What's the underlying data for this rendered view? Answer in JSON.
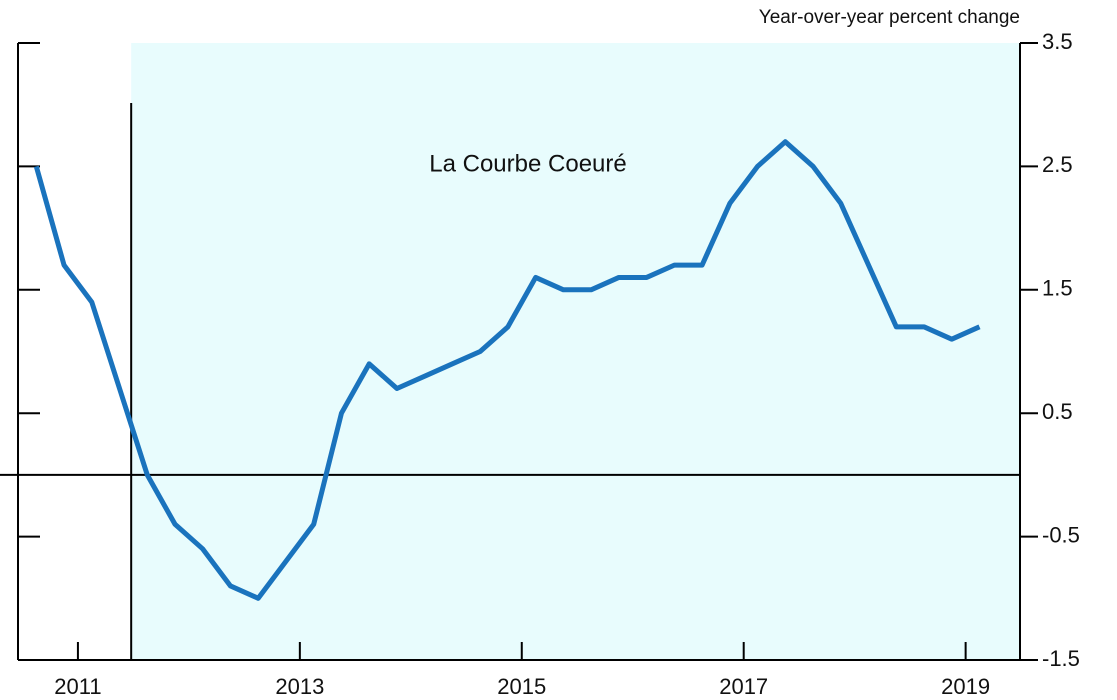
{
  "chart_data": {
    "type": "line",
    "y_axis_label": "Year-over-year percent change",
    "annotation": "La Courbe Coeuré",
    "x": [
      2010.625,
      2010.875,
      2011.125,
      2011.375,
      2011.625,
      2011.875,
      2012.125,
      2012.375,
      2012.625,
      2012.875,
      2013.125,
      2013.375,
      2013.625,
      2013.875,
      2014.125,
      2014.375,
      2014.625,
      2014.875,
      2015.125,
      2015.375,
      2015.625,
      2015.875,
      2016.125,
      2016.375,
      2016.625,
      2016.875,
      2017.125,
      2017.375,
      2017.625,
      2017.875,
      2018.125,
      2018.375,
      2018.625,
      2018.875,
      2019.125
    ],
    "series": [
      {
        "color": "#1a73bd",
        "values": [
          2.5,
          1.7,
          1.4,
          0.7,
          0.0,
          -0.4,
          -0.6,
          -0.9,
          -1.0,
          -0.7,
          -0.4,
          0.5,
          0.9,
          0.7,
          0.8,
          0.9,
          1.0,
          1.2,
          1.6,
          1.5,
          1.5,
          1.6,
          1.6,
          1.7,
          1.7,
          2.2,
          2.5,
          2.7,
          2.5,
          2.2,
          1.7,
          1.2,
          1.2,
          1.1,
          1.2
        ]
      }
    ],
    "xlim": [
      2010.46,
      2019.49
    ],
    "xticks": [
      2011,
      2013,
      2015,
      2017,
      2019
    ],
    "ylim": [
      -1.5,
      3.5
    ],
    "yticks": [
      3.5,
      2.5,
      1.5,
      0.5,
      -0.5,
      -1.5
    ],
    "shade_start": 2011.48,
    "shade_color": "#e8fcfd"
  }
}
